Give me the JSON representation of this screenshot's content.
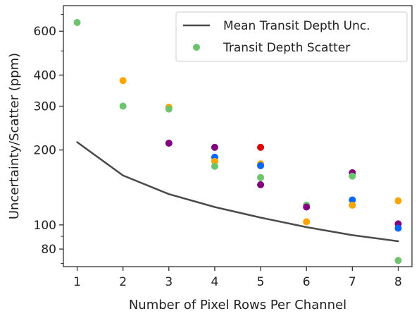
{
  "chart_data": {
    "type": "scatter",
    "xlabel": "Number of Pixel Rows Per Channel",
    "ylabel": "Uncertainty/Scatter (ppm)",
    "yscale": "log",
    "xlim": [
      0.7,
      8.3
    ],
    "ylim": [
      68,
      760
    ],
    "xticks": [
      1,
      2,
      3,
      4,
      5,
      6,
      7,
      8
    ],
    "xtick_labels": [
      "1",
      "2",
      "3",
      "4",
      "5",
      "6",
      "7",
      "8"
    ],
    "yticks_major": [
      80,
      100,
      200,
      300,
      400,
      600
    ],
    "ytick_labels": [
      "80",
      "100",
      "200",
      "300",
      "400",
      "600"
    ],
    "yticks_minor": [
      70,
      90,
      500,
      700
    ],
    "grid": false,
    "legend": {
      "placement": "top-right",
      "entries": [
        "Mean Transit Depth Unc.",
        "Transit Depth Scatter"
      ]
    },
    "line_series": {
      "name": "Mean Transit Depth Unc.",
      "color": "#4a4a4a",
      "x": [
        1,
        2,
        3,
        4,
        5,
        6,
        7,
        8
      ],
      "y": [
        215,
        158,
        133,
        118,
        107,
        98,
        91,
        86
      ]
    },
    "scatter_points": [
      {
        "x": 1,
        "y": 650,
        "color": "#6cc46c"
      },
      {
        "x": 2,
        "y": 380,
        "color": "#ffa500"
      },
      {
        "x": 2,
        "y": 300,
        "color": "#6cc46c"
      },
      {
        "x": 3,
        "y": 297,
        "color": "#ffa500"
      },
      {
        "x": 3,
        "y": 292,
        "color": "#6cc46c"
      },
      {
        "x": 3,
        "y": 213,
        "color": "#800080"
      },
      {
        "x": 4,
        "y": 205,
        "color": "#800080"
      },
      {
        "x": 4,
        "y": 187,
        "color": "#0066ff"
      },
      {
        "x": 4,
        "y": 180,
        "color": "#ffa500"
      },
      {
        "x": 4,
        "y": 172,
        "color": "#6cc46c"
      },
      {
        "x": 5,
        "y": 205,
        "color": "#e00000"
      },
      {
        "x": 5,
        "y": 176,
        "color": "#ffa500"
      },
      {
        "x": 5,
        "y": 173,
        "color": "#0066ff"
      },
      {
        "x": 5,
        "y": 155,
        "color": "#6cc46c"
      },
      {
        "x": 5,
        "y": 145,
        "color": "#800080"
      },
      {
        "x": 6,
        "y": 120,
        "color": "#6cc46c"
      },
      {
        "x": 6,
        "y": 118,
        "color": "#800080"
      },
      {
        "x": 6,
        "y": 103,
        "color": "#ffa500"
      },
      {
        "x": 7,
        "y": 162,
        "color": "#800080"
      },
      {
        "x": 7,
        "y": 157,
        "color": "#6cc46c"
      },
      {
        "x": 7,
        "y": 126,
        "color": "#0066ff"
      },
      {
        "x": 7,
        "y": 120,
        "color": "#ffa500"
      },
      {
        "x": 8,
        "y": 125,
        "color": "#ffa500"
      },
      {
        "x": 8,
        "y": 101,
        "color": "#800080"
      },
      {
        "x": 8,
        "y": 97,
        "color": "#0066ff"
      },
      {
        "x": 8,
        "y": 72,
        "color": "#6cc46c"
      }
    ],
    "legend_marker_color": "#6cc46c"
  }
}
